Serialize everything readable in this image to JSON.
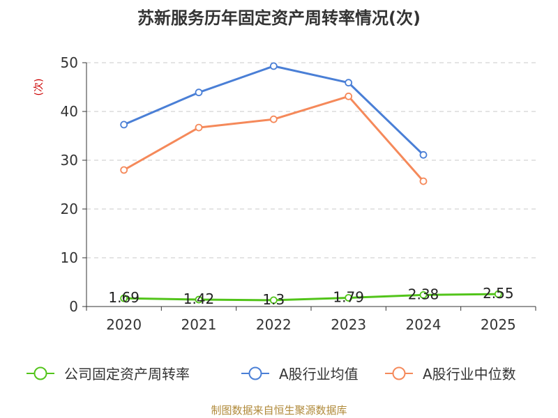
{
  "chart_data": {
    "type": "line",
    "title": "苏新服务历年固定资产周转率情况(次)",
    "ylabel": "(次)",
    "xlabel": "",
    "categories": [
      "2020",
      "2021",
      "2022",
      "2023",
      "2024",
      "2025"
    ],
    "ylim": [
      0,
      50
    ],
    "yticks": [
      0,
      10,
      20,
      30,
      40,
      50
    ],
    "grid": true,
    "legend_position": "bottom",
    "series": [
      {
        "name": "公司固定资产周转率",
        "color": "#52c41a",
        "values": [
          1.69,
          1.42,
          1.3,
          1.79,
          2.38,
          2.55
        ],
        "labels": [
          "1.69",
          "1.42",
          "1.3",
          "1.79",
          "2.38",
          "2.55"
        ]
      },
      {
        "name": "A股行业均值",
        "color": "#4a7fd6",
        "values": [
          37.3,
          43.9,
          49.3,
          45.9,
          31.1,
          null
        ]
      },
      {
        "name": "A股行业中位数",
        "color": "#f5895a",
        "values": [
          28.0,
          36.7,
          38.4,
          43.1,
          25.7,
          null
        ]
      }
    ]
  },
  "footer": {
    "source": "制图数据来自恒生聚源数据库"
  }
}
